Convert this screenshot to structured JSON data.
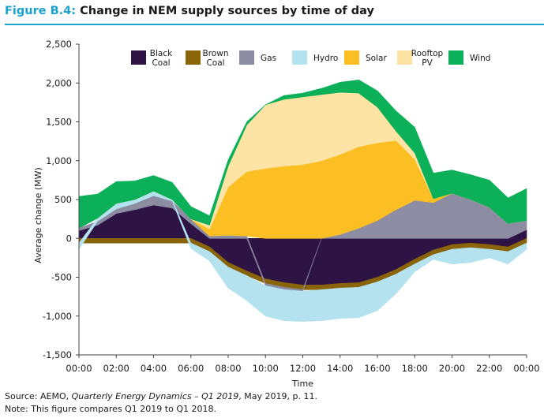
{
  "figure": {
    "label": "Figure B.4:",
    "title": "Change in NEM supply sources by time of day"
  },
  "footnotes": {
    "source_prefix": "Source: AEMO, ",
    "source_italic": "Quarterly Energy Dynamics – Q1 2019",
    "source_suffix": ", May 2019, p. 11.",
    "note": "Note: This figure compares Q1 2019 to Q1 2018."
  },
  "chart_data": {
    "type": "area",
    "stacked": true,
    "xlabel": "Time",
    "ylabel": "Average change (MW)",
    "ylim": [
      -1500,
      2500
    ],
    "yticks": [
      -1500,
      -1000,
      -500,
      0,
      500,
      1000,
      1500,
      2000,
      2500
    ],
    "ytick_labels": [
      "-1,500",
      "-1,000",
      "-500",
      "0",
      "500",
      "1,000",
      "1,500",
      "2,000",
      "2,500"
    ],
    "xlim": [
      0,
      24
    ],
    "xticks": [
      0,
      2,
      4,
      6,
      8,
      10,
      12,
      14,
      16,
      18,
      20,
      22,
      24
    ],
    "xtick_labels": [
      "00:00",
      "02:00",
      "04:00",
      "06:00",
      "08:00",
      "10:00",
      "12:00",
      "14:00",
      "16:00",
      "18:00",
      "20:00",
      "22:00",
      "00:00"
    ],
    "grid": false,
    "legend_position": "top",
    "x": [
      0,
      1,
      2,
      3,
      4,
      5,
      6,
      7,
      8,
      9,
      10,
      11,
      12,
      13,
      14,
      15,
      16,
      17,
      18,
      19,
      20,
      21,
      22,
      23,
      24
    ],
    "series": [
      {
        "name": "Black Coal",
        "color": "#2e1345",
        "values": [
          100,
          170,
          320,
          370,
          430,
          390,
          190,
          -110,
          -310,
          -420,
          -520,
          -570,
          -600,
          -600,
          -580,
          -570,
          -500,
          -400,
          -270,
          -150,
          -80,
          -60,
          -80,
          -110,
          110
        ]
      },
      {
        "name": "Brown Coal",
        "color": "#8a6408",
        "values": [
          -60,
          -60,
          -60,
          -60,
          -60,
          -60,
          -60,
          -60,
          -60,
          -60,
          -60,
          -60,
          -60,
          -60,
          -60,
          -60,
          -60,
          -60,
          -60,
          -60,
          -60,
          -60,
          -60,
          -60,
          -60
        ]
      },
      {
        "name": "Gas",
        "color": "#8c8ca3",
        "values": [
          30,
          50,
          60,
          80,
          120,
          90,
          60,
          30,
          40,
          30,
          -30,
          -30,
          -20,
          0,
          50,
          130,
          230,
          370,
          490,
          460,
          580,
          500,
          400,
          190,
          120
        ]
      },
      {
        "name": "Hydro",
        "color": "#b4e2ef",
        "values": [
          -80,
          40,
          70,
          50,
          60,
          20,
          -70,
          -120,
          -270,
          -320,
          -390,
          -400,
          -390,
          -400,
          -390,
          -390,
          -370,
          -250,
          -100,
          -60,
          -190,
          -190,
          -110,
          -160,
          -80
        ]
      },
      {
        "name": "Solar",
        "color": "#fbbf24",
        "values": [
          0,
          0,
          0,
          0,
          0,
          0,
          0,
          90,
          620,
          830,
          900,
          930,
          950,
          1000,
          1030,
          1050,
          1000,
          890,
          530,
          50,
          0,
          0,
          0,
          0,
          0
        ]
      },
      {
        "name": "Rooftop PV",
        "color": "#fde4a4",
        "values": [
          0,
          0,
          0,
          0,
          0,
          0,
          0,
          50,
          270,
          600,
          820,
          860,
          870,
          850,
          800,
          690,
          460,
          120,
          80,
          0,
          0,
          0,
          0,
          0,
          0
        ]
      },
      {
        "name": "Wind",
        "color": "#0bb058",
        "values": [
          410,
          310,
          280,
          240,
          200,
          220,
          160,
          120,
          80,
          40,
          0,
          50,
          50,
          80,
          130,
          170,
          210,
          260,
          330,
          330,
          300,
          320,
          350,
          330,
          410
        ]
      }
    ]
  }
}
